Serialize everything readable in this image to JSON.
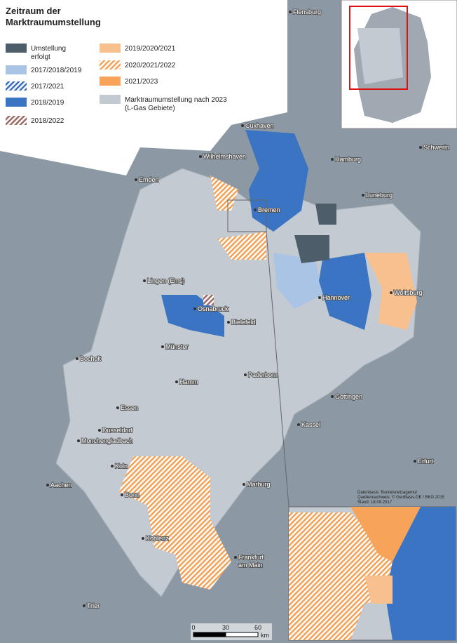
{
  "title_lines": [
    "Zeitraum der",
    "Marktraumumstellung"
  ],
  "legend": [
    {
      "lines": [
        "Umstellung",
        "erfolgt"
      ],
      "color": "#4d5d6a",
      "hatched": false
    },
    {
      "lines": [
        "2017/2018/2019"
      ],
      "color": "#a9c4e4",
      "hatched": false
    },
    {
      "lines": [
        "2017/2021"
      ],
      "color": "#3b6fc4",
      "hatched": true
    },
    {
      "lines": [
        "2018/2019"
      ],
      "color": "#3a74c2",
      "hatched": false
    },
    {
      "lines": [
        "2018/2022"
      ],
      "color": "#9c6a66",
      "hatched": true
    },
    {
      "lines": [
        "2019/2020/2021"
      ],
      "color": "#f9c08f",
      "hatched": false
    },
    {
      "lines": [
        "2020/2021/2022"
      ],
      "color": "#f4a155",
      "hatched": true
    },
    {
      "lines": [
        "2021/2023"
      ],
      "color": "#f7a35a",
      "hatched": false
    },
    {
      "lines": [
        "Marktraumumstellung nach 2023",
        "(L-Gas Gebiete)"
      ],
      "color": "#c3cad1",
      "hatched": false
    }
  ],
  "cities": [
    {
      "lines": [
        "Flensburg"
      ]
    },
    {
      "lines": [
        "Cuxhaven"
      ]
    },
    {
      "lines": [
        "Wilhelmshaven"
      ]
    },
    {
      "lines": [
        "Hamburg"
      ]
    },
    {
      "lines": [
        "Schwerin"
      ]
    },
    {
      "lines": [
        "Emden"
      ]
    },
    {
      "lines": [
        "Bremen"
      ]
    },
    {
      "lines": [
        "Luneburg"
      ]
    },
    {
      "lines": [
        "Lingen (Ems)"
      ]
    },
    {
      "lines": [
        "Hannover"
      ]
    },
    {
      "lines": [
        "Wolfsburg"
      ]
    },
    {
      "lines": [
        "Osnabruck"
      ]
    },
    {
      "lines": [
        "Bielefeld"
      ]
    },
    {
      "lines": [
        "Münster"
      ]
    },
    {
      "lines": [
        "Bocholt"
      ]
    },
    {
      "lines": [
        "Paderborn"
      ]
    },
    {
      "lines": [
        "Hamm"
      ]
    },
    {
      "lines": [
        "Essen"
      ]
    },
    {
      "lines": [
        "Gottingen"
      ]
    },
    {
      "lines": [
        "Kassel"
      ]
    },
    {
      "lines": [
        "Dusseldorf"
      ]
    },
    {
      "lines": [
        "Monchengladbach"
      ]
    },
    {
      "lines": [
        "Koln"
      ]
    },
    {
      "lines": [
        "Erfurt"
      ]
    },
    {
      "lines": [
        "Aachen"
      ]
    },
    {
      "lines": [
        "Bonn"
      ]
    },
    {
      "lines": [
        "Marburg"
      ]
    },
    {
      "lines": [
        "Koblenz"
      ]
    },
    {
      "lines": [
        "Frankfurt",
        "am Main"
      ]
    },
    {
      "lines": [
        "Trier"
      ]
    }
  ],
  "source_lines": [
    "Datenbasis: Bundesnetzagentur",
    "Quellennachweis: © GeoBasis-DE / BKG 2015",
    "Stand: 18.09.2017"
  ],
  "scale": {
    "ticks": [
      0,
      30,
      60
    ],
    "unit": "km"
  }
}
